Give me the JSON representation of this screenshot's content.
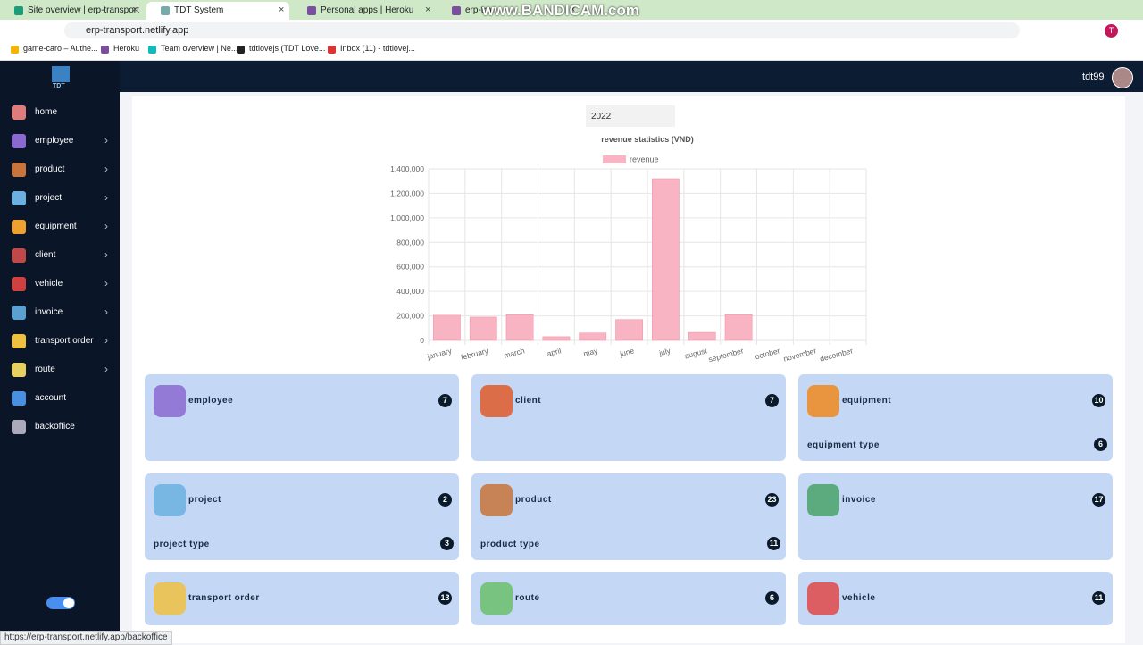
{
  "browser": {
    "tabs": [
      "Site overview | erp-transport",
      "TDT System",
      "Personal apps | Heroku",
      "erp-tran"
    ],
    "watermark": "www.BANDICAM.com",
    "address": "erp-transport.netlify.app",
    "bookmarks": [
      "game-caro – Authe...",
      "Heroku",
      "Team overview | Ne...",
      "tdtlovejs (TDT Love...",
      "Inbox (11) - tdtlovej..."
    ],
    "profile": "T",
    "status_url": "https://erp-transport.netlify.app/backoffice"
  },
  "app": {
    "logo": "TDT",
    "user": "tdt99",
    "sidebar": [
      {
        "label": "home",
        "has_submenu": false
      },
      {
        "label": "employee",
        "has_submenu": true
      },
      {
        "label": "product",
        "has_submenu": true
      },
      {
        "label": "project",
        "has_submenu": true
      },
      {
        "label": "equipment",
        "has_submenu": true
      },
      {
        "label": "client",
        "has_submenu": true
      },
      {
        "label": "vehicle",
        "has_submenu": true
      },
      {
        "label": "invoice",
        "has_submenu": true
      },
      {
        "label": "transport order",
        "has_submenu": true
      },
      {
        "label": "route",
        "has_submenu": true
      },
      {
        "label": "account",
        "has_submenu": false
      },
      {
        "label": "backoffice",
        "has_submenu": false
      }
    ],
    "year": "2022",
    "cards": [
      {
        "title": "employee",
        "count": 7
      },
      {
        "title": "client",
        "count": 7
      },
      {
        "title": "equipment",
        "count": 10,
        "sub_title": "equipment type",
        "sub_count": 6
      },
      {
        "title": "project",
        "count": 2,
        "sub_title": "project type",
        "sub_count": 3
      },
      {
        "title": "product",
        "count": 23,
        "sub_title": "product type",
        "sub_count": 11
      },
      {
        "title": "invoice",
        "count": 17
      },
      {
        "title": "transport order",
        "count": 13
      },
      {
        "title": "route",
        "count": 6
      },
      {
        "title": "vehicle",
        "count": 11
      }
    ]
  },
  "chart_data": {
    "type": "bar",
    "title": "revenue statistics (VND)",
    "categories": [
      "january",
      "february",
      "march",
      "april",
      "may",
      "june",
      "july",
      "august",
      "september",
      "october",
      "november",
      "december"
    ],
    "series": [
      {
        "name": "revenue",
        "color": "#f8b4c2",
        "values": [
          205000,
          190000,
          210000,
          30000,
          60000,
          170000,
          1320000,
          65000,
          210000,
          0,
          0,
          0
        ]
      }
    ],
    "ylim": [
      0,
      1400000
    ],
    "yticks": [
      0,
      {
        "value": 200000,
        "label": "200,000"
      },
      {
        "value": 400000,
        "label": "400,000"
      },
      {
        "value": 600000,
        "label": "600,000"
      },
      {
        "value": 800000,
        "label": "800,000"
      },
      {
        "value": 1000000,
        "label": "1,000,000"
      },
      {
        "value": 1200000,
        "label": "1,200,000"
      },
      {
        "value": 1400000,
        "label": "1,400,000"
      }
    ],
    "grid": true,
    "legend": "top"
  }
}
